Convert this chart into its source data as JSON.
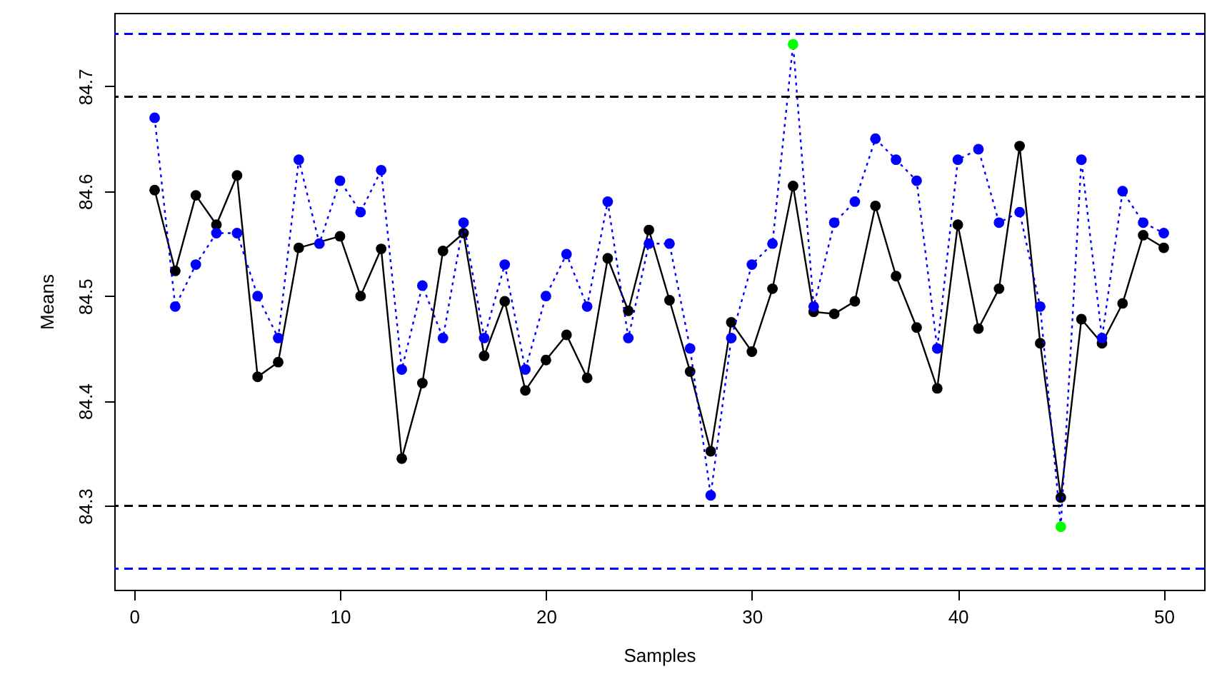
{
  "chart_data": {
    "type": "line",
    "xlabel": "Samples",
    "ylabel": "Means",
    "x": [
      1,
      2,
      3,
      4,
      5,
      6,
      7,
      8,
      9,
      10,
      11,
      12,
      13,
      14,
      15,
      16,
      17,
      18,
      19,
      20,
      21,
      22,
      23,
      24,
      25,
      26,
      27,
      28,
      29,
      30,
      31,
      32,
      33,
      34,
      35,
      36,
      37,
      38,
      39,
      40,
      41,
      42,
      43,
      44,
      45,
      46,
      47,
      48,
      49,
      50
    ],
    "series": [
      {
        "color": "#000000",
        "line_style": "solid",
        "values": [
          84.601,
          84.524,
          84.596,
          84.568,
          84.615,
          84.423,
          84.437,
          84.546,
          null,
          84.557,
          84.5,
          84.545,
          84.345,
          84.417,
          84.543,
          84.56,
          84.443,
          84.495,
          84.41,
          84.439,
          84.463,
          84.422,
          84.536,
          84.486,
          84.563,
          84.496,
          84.428,
          84.352,
          84.475,
          84.447,
          84.507,
          84.605,
          84.485,
          84.483,
          84.495,
          84.586,
          84.519,
          84.47,
          84.412,
          84.568,
          84.469,
          84.507,
          84.643,
          84.455,
          84.308,
          84.478,
          84.455,
          84.493,
          84.558,
          84.546
        ]
      },
      {
        "color": "#0000ff",
        "line_style": "dotted",
        "values": [
          84.67,
          84.49,
          84.53,
          84.56,
          84.56,
          84.5,
          84.46,
          84.63,
          84.55,
          84.61,
          84.58,
          84.62,
          84.43,
          84.51,
          84.46,
          84.57,
          84.46,
          84.53,
          84.43,
          84.5,
          84.54,
          84.49,
          84.59,
          84.46,
          84.55,
          84.55,
          84.45,
          84.31,
          84.46,
          84.53,
          84.55,
          84.74,
          84.49,
          84.57,
          84.59,
          84.65,
          84.63,
          84.61,
          84.45,
          84.63,
          84.64,
          84.57,
          84.58,
          84.49,
          84.28,
          84.63,
          84.46,
          84.6,
          84.57,
          84.56
        ],
        "colors": [
          "#0000ff",
          "#0000ff",
          "#0000ff",
          "#0000ff",
          "#0000ff",
          "#0000ff",
          "#0000ff",
          "#0000ff",
          "#0000ff",
          "#0000ff",
          "#0000ff",
          "#0000ff",
          "#0000ff",
          "#0000ff",
          "#0000ff",
          "#0000ff",
          "#0000ff",
          "#0000ff",
          "#0000ff",
          "#0000ff",
          "#0000ff",
          "#0000ff",
          "#0000ff",
          "#0000ff",
          "#0000ff",
          "#0000ff",
          "#0000ff",
          "#0000ff",
          "#0000ff",
          "#0000ff",
          "#0000ff",
          "#00ff00",
          "#0000ff",
          "#0000ff",
          "#0000ff",
          "#0000ff",
          "#0000ff",
          "#0000ff",
          "#0000ff",
          "#0000ff",
          "#0000ff",
          "#0000ff",
          "#0000ff",
          "#0000ff",
          "#00ff00",
          "#0000ff",
          "#0000ff",
          "#0000ff",
          "#0000ff",
          "#0000ff"
        ]
      }
    ],
    "marker": "circle",
    "xlim": [
      -0.96,
      51.96
    ],
    "xticks": [
      0,
      10,
      20,
      30,
      40,
      50
    ],
    "ylim": [
      84.22,
      84.77
    ],
    "yticks": [
      84.3,
      84.4,
      84.5,
      84.6,
      84.7
    ],
    "ref_lines": [
      {
        "axis": "y",
        "value": 84.69,
        "color": "#000000",
        "line_style": "dashed"
      },
      {
        "axis": "y",
        "value": 84.3,
        "color": "#000000",
        "line_style": "dashed"
      },
      {
        "axis": "y",
        "value": 84.75,
        "color": "#0000ff",
        "line_style": "dashed"
      },
      {
        "axis": "y",
        "value": 84.24,
        "color": "#0000ff",
        "line_style": "dashed"
      }
    ]
  }
}
